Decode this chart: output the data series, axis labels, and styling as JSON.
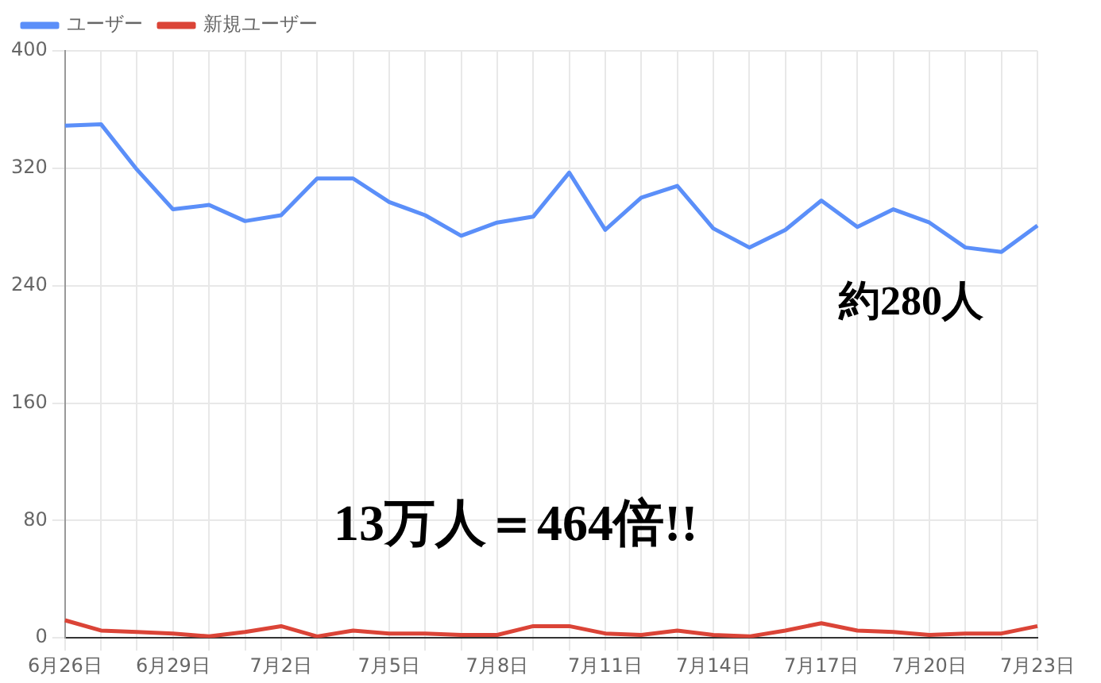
{
  "chart_data": {
    "type": "line",
    "categories": [
      "6月26日",
      null,
      null,
      "6月29日",
      null,
      null,
      "7月2日",
      null,
      null,
      "7月5日",
      null,
      null,
      "7月8日",
      null,
      null,
      "7月11日",
      null,
      null,
      "7月14日",
      null,
      null,
      "7月17日",
      null,
      null,
      "7月20日",
      null,
      null,
      "7月23日"
    ],
    "series": [
      {
        "name": "ユーザー",
        "color": "#5b8ff9",
        "values": [
          349,
          350,
          319,
          292,
          295,
          284,
          288,
          313,
          313,
          297,
          288,
          274,
          283,
          287,
          317,
          278,
          300,
          308,
          279,
          266,
          278,
          298,
          280,
          292,
          283,
          266,
          263,
          281
        ]
      },
      {
        "name": "新規ユーザー",
        "color": "#db4437",
        "values": [
          12,
          5,
          4,
          3,
          1,
          4,
          8,
          1,
          5,
          3,
          3,
          2,
          2,
          8,
          8,
          3,
          2,
          5,
          2,
          1,
          5,
          10,
          5,
          4,
          2,
          3,
          3,
          8
        ]
      }
    ],
    "ylim": [
      0,
      400
    ],
    "yticks": [
      0,
      80,
      160,
      240,
      320,
      400
    ],
    "grid": true,
    "legend": "top left",
    "marker": "none",
    "line_style": "solid",
    "annotations": [
      "約280人",
      "13万人＝464倍!!"
    ]
  }
}
